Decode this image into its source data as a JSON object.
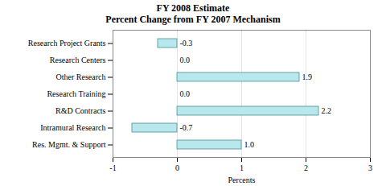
{
  "chart_data": {
    "type": "bar",
    "orientation": "horizontal",
    "title": "FY 2008 Estimate\nPercent Change from FY 2007 Mechanism",
    "xlabel": "Percents",
    "categories": [
      "Research Project Grants",
      "Research Centers",
      "Other Research",
      "Research Training",
      "R&D Contracts",
      "Intramural Research",
      "Res. Mgmt. & Support"
    ],
    "values": [
      -0.3,
      0.0,
      1.9,
      0.0,
      2.2,
      -0.7,
      1.0
    ],
    "value_labels": [
      "-0.3",
      "0.0",
      "1.9",
      "0.0",
      "2.2",
      "-0.7",
      "1.0"
    ],
    "data_labels": true,
    "color": "#b8e8ed",
    "xlim": [
      -1,
      3
    ],
    "xticks": [
      -1,
      0,
      1,
      2,
      3
    ],
    "grid": true
  }
}
